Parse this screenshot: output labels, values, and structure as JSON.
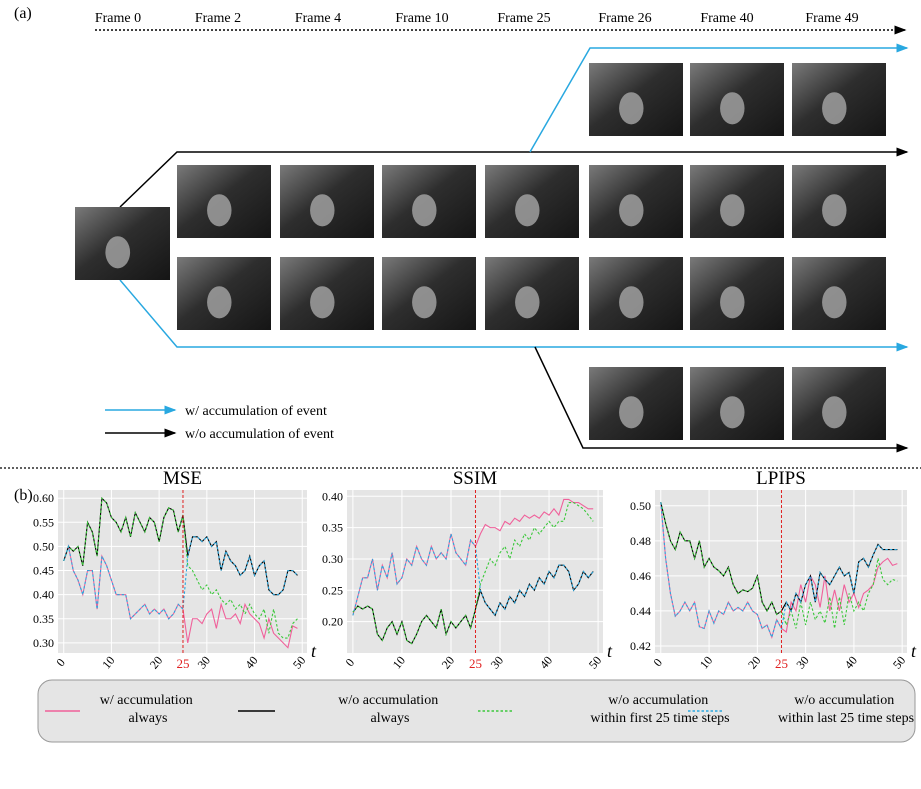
{
  "panel_a": {
    "label": "(a)",
    "frames": [
      "Frame 0",
      "Frame 2",
      "Frame 4",
      "Frame 10",
      "Frame 25",
      "Frame 26",
      "Frame 40",
      "Frame 49"
    ],
    "legend": [
      "w/ accumulation of event",
      "w/o accumulation of event"
    ]
  },
  "panel_b_label": "(b)",
  "chart_data": [
    {
      "type": "line",
      "title": "MSE",
      "x_label": "t",
      "vline": 25,
      "vline_color": "#e02020",
      "grid": true,
      "xlim": [
        -1.2,
        51
      ],
      "xticks": [
        0,
        10,
        20,
        30,
        40,
        50
      ],
      "ylim": [
        0.279,
        0.617
      ],
      "yticks": [
        {
          "value": 0.3,
          "label": "0.30"
        },
        0.35,
        {
          "value": 0.4,
          "label": "0.40"
        },
        0.45,
        {
          "value": 0.5,
          "label": "0.50"
        },
        0.55,
        {
          "value": 0.6,
          "label": "0.60"
        }
      ],
      "x": [
        0,
        1,
        2,
        3,
        4,
        5,
        6,
        7,
        8,
        9,
        10,
        11,
        12,
        13,
        14,
        15,
        16,
        17,
        18,
        19,
        20,
        21,
        22,
        23,
        24,
        25,
        26,
        27,
        28,
        29,
        30,
        31,
        32,
        33,
        34,
        35,
        36,
        37,
        38,
        39,
        40,
        41,
        42,
        43,
        44,
        45,
        46,
        47,
        48,
        49
      ],
      "series": [
        {
          "name": "w/ accumulation always",
          "color": "#f0609a",
          "style": "solid",
          "values": [
            0.47,
            0.5,
            0.45,
            0.43,
            0.4,
            0.45,
            0.45,
            0.37,
            0.48,
            0.46,
            0.43,
            0.4,
            0.4,
            0.4,
            0.35,
            0.36,
            0.37,
            0.38,
            0.36,
            0.37,
            0.36,
            0.37,
            0.35,
            0.36,
            0.38,
            0.37,
            0.3,
            0.35,
            0.35,
            0.34,
            0.36,
            0.37,
            0.33,
            0.38,
            0.35,
            0.35,
            0.36,
            0.34,
            0.38,
            0.36,
            0.35,
            0.34,
            0.31,
            0.35,
            0.32,
            0.31,
            0.3,
            0.29,
            0.335,
            0.33
          ]
        },
        {
          "name": "w/o accumulation always",
          "color": "#000000",
          "style": "solid",
          "values": [
            0.47,
            0.5,
            0.49,
            0.5,
            0.46,
            0.55,
            0.53,
            0.48,
            0.6,
            0.59,
            0.56,
            0.55,
            0.53,
            0.56,
            0.52,
            0.57,
            0.55,
            0.53,
            0.56,
            0.55,
            0.51,
            0.56,
            0.58,
            0.575,
            0.53,
            0.565,
            0.48,
            0.52,
            0.52,
            0.51,
            0.52,
            0.5,
            0.51,
            0.45,
            0.49,
            0.47,
            0.46,
            0.44,
            0.45,
            0.48,
            0.44,
            0.46,
            0.47,
            0.41,
            0.4,
            0.4,
            0.41,
            0.45,
            0.45,
            0.44
          ]
        },
        {
          "name": "w/o accumulation within first 25 time steps",
          "color": "#3cc83c",
          "style": "dotted",
          "values": [
            0.47,
            0.5,
            0.49,
            0.5,
            0.46,
            0.55,
            0.53,
            0.48,
            0.6,
            0.59,
            0.56,
            0.55,
            0.53,
            0.56,
            0.52,
            0.57,
            0.55,
            0.53,
            0.56,
            0.55,
            0.51,
            0.56,
            0.58,
            0.575,
            0.53,
            0.565,
            0.46,
            0.45,
            0.43,
            0.41,
            0.42,
            0.4,
            0.41,
            0.39,
            0.38,
            0.39,
            0.37,
            0.38,
            0.36,
            0.38,
            0.36,
            0.35,
            0.37,
            0.32,
            0.37,
            0.32,
            0.31,
            0.31,
            0.34,
            0.35
          ]
        },
        {
          "name": "w/o accumulation within last 25 time steps",
          "color": "#29a8e0",
          "style": "dotted",
          "values": [
            0.47,
            0.5,
            0.45,
            0.43,
            0.4,
            0.45,
            0.45,
            0.37,
            0.48,
            0.46,
            0.43,
            0.4,
            0.4,
            0.4,
            0.35,
            0.36,
            0.37,
            0.38,
            0.36,
            0.37,
            0.36,
            0.37,
            0.35,
            0.36,
            0.38,
            0.37,
            0.48,
            0.52,
            0.52,
            0.51,
            0.52,
            0.5,
            0.51,
            0.45,
            0.49,
            0.47,
            0.46,
            0.44,
            0.45,
            0.48,
            0.44,
            0.46,
            0.47,
            0.41,
            0.4,
            0.4,
            0.41,
            0.45,
            0.45,
            0.44
          ]
        }
      ]
    },
    {
      "type": "line",
      "title": "SSIM",
      "x_label": "t",
      "vline": 25,
      "vline_color": "#e02020",
      "grid": true,
      "xlim": [
        -1.2,
        51
      ],
      "xticks": [
        0,
        10,
        20,
        30,
        40,
        50
      ],
      "ylim": [
        0.15,
        0.41
      ],
      "yticks": [
        {
          "value": 0.2,
          "label": "0.20"
        },
        0.25,
        {
          "value": 0.3,
          "label": "0.30"
        },
        0.35,
        {
          "value": 0.4,
          "label": "0.40"
        }
      ],
      "x": [
        0,
        1,
        2,
        3,
        4,
        5,
        6,
        7,
        8,
        9,
        10,
        11,
        12,
        13,
        14,
        15,
        16,
        17,
        18,
        19,
        20,
        21,
        22,
        23,
        24,
        25,
        26,
        27,
        28,
        29,
        30,
        31,
        32,
        33,
        34,
        35,
        36,
        37,
        38,
        39,
        40,
        41,
        42,
        43,
        44,
        45,
        46,
        47,
        48,
        49
      ],
      "series": [
        {
          "color": "#f0609a",
          "style": "solid",
          "values": [
            0.21,
            0.24,
            0.27,
            0.27,
            0.3,
            0.25,
            0.29,
            0.27,
            0.31,
            0.26,
            0.27,
            0.3,
            0.29,
            0.32,
            0.3,
            0.29,
            0.32,
            0.3,
            0.31,
            0.3,
            0.34,
            0.31,
            0.3,
            0.29,
            0.33,
            0.32,
            0.34,
            0.355,
            0.35,
            0.35,
            0.345,
            0.36,
            0.355,
            0.365,
            0.36,
            0.37,
            0.365,
            0.37,
            0.365,
            0.375,
            0.37,
            0.38,
            0.37,
            0.395,
            0.395,
            0.39,
            0.39,
            0.385,
            0.38,
            0.38
          ]
        },
        {
          "color": "#000000",
          "style": "solid",
          "values": [
            0.215,
            0.225,
            0.22,
            0.225,
            0.22,
            0.18,
            0.17,
            0.19,
            0.2,
            0.18,
            0.2,
            0.17,
            0.165,
            0.18,
            0.2,
            0.21,
            0.2,
            0.19,
            0.22,
            0.18,
            0.2,
            0.19,
            0.2,
            0.21,
            0.19,
            0.22,
            0.25,
            0.23,
            0.22,
            0.21,
            0.23,
            0.22,
            0.24,
            0.23,
            0.25,
            0.24,
            0.26,
            0.25,
            0.27,
            0.26,
            0.28,
            0.27,
            0.29,
            0.29,
            0.28,
            0.25,
            0.26,
            0.28,
            0.27,
            0.28
          ]
        },
        {
          "color": "#3cc83c",
          "style": "dotted",
          "values": [
            0.215,
            0.225,
            0.22,
            0.225,
            0.22,
            0.18,
            0.17,
            0.19,
            0.2,
            0.18,
            0.2,
            0.17,
            0.165,
            0.18,
            0.2,
            0.21,
            0.2,
            0.19,
            0.22,
            0.18,
            0.2,
            0.19,
            0.2,
            0.21,
            0.19,
            0.22,
            0.26,
            0.28,
            0.3,
            0.29,
            0.31,
            0.32,
            0.3,
            0.33,
            0.32,
            0.34,
            0.33,
            0.35,
            0.34,
            0.35,
            0.36,
            0.35,
            0.36,
            0.36,
            0.39,
            0.39,
            0.385,
            0.38,
            0.37,
            0.36
          ]
        },
        {
          "color": "#29a8e0",
          "style": "dotted",
          "values": [
            0.21,
            0.24,
            0.27,
            0.27,
            0.3,
            0.25,
            0.29,
            0.27,
            0.31,
            0.26,
            0.27,
            0.3,
            0.29,
            0.32,
            0.3,
            0.29,
            0.32,
            0.3,
            0.31,
            0.3,
            0.34,
            0.31,
            0.3,
            0.29,
            0.33,
            0.32,
            0.25,
            0.23,
            0.22,
            0.21,
            0.23,
            0.22,
            0.24,
            0.23,
            0.25,
            0.24,
            0.26,
            0.25,
            0.27,
            0.26,
            0.28,
            0.27,
            0.29,
            0.29,
            0.28,
            0.25,
            0.26,
            0.28,
            0.27,
            0.28
          ]
        }
      ]
    },
    {
      "type": "line",
      "title": "LPIPS",
      "x_label": "t",
      "vline": 25,
      "vline_color": "#e02020",
      "grid": true,
      "xlim": [
        -1.2,
        51
      ],
      "xticks": [
        0,
        10,
        20,
        30,
        40,
        50
      ],
      "ylim": [
        0.416,
        0.509
      ],
      "yticks": [
        0.42,
        0.44,
        0.46,
        0.48,
        {
          "value": 0.5,
          "label": "0.50"
        }
      ],
      "x": [
        0,
        1,
        2,
        3,
        4,
        5,
        6,
        7,
        8,
        9,
        10,
        11,
        12,
        13,
        14,
        15,
        16,
        17,
        18,
        19,
        20,
        21,
        22,
        23,
        24,
        25,
        26,
        27,
        28,
        29,
        30,
        31,
        32,
        33,
        34,
        35,
        36,
        37,
        38,
        39,
        40,
        41,
        42,
        43,
        44,
        45,
        46,
        47,
        48,
        49
      ],
      "series": [
        {
          "color": "#f0609a",
          "style": "solid",
          "values": [
            0.502,
            0.47,
            0.45,
            0.437,
            0.44,
            0.445,
            0.44,
            0.445,
            0.431,
            0.43,
            0.44,
            0.433,
            0.44,
            0.438,
            0.445,
            0.44,
            0.442,
            0.44,
            0.445,
            0.44,
            0.438,
            0.43,
            0.432,
            0.425,
            0.435,
            0.43,
            0.428,
            0.445,
            0.44,
            0.455,
            0.445,
            0.46,
            0.455,
            0.442,
            0.46,
            0.44,
            0.452,
            0.44,
            0.455,
            0.445,
            0.45,
            0.442,
            0.45,
            0.452,
            0.455,
            0.465,
            0.468,
            0.47,
            0.466,
            0.467
          ]
        },
        {
          "color": "#000000",
          "style": "solid",
          "values": [
            0.502,
            0.49,
            0.48,
            0.475,
            0.485,
            0.48,
            0.48,
            0.47,
            0.48,
            0.465,
            0.47,
            0.465,
            0.463,
            0.46,
            0.465,
            0.455,
            0.45,
            0.452,
            0.451,
            0.453,
            0.46,
            0.445,
            0.44,
            0.445,
            0.438,
            0.44,
            0.445,
            0.44,
            0.45,
            0.445,
            0.455,
            0.46,
            0.445,
            0.462,
            0.458,
            0.455,
            0.46,
            0.465,
            0.46,
            0.462,
            0.45,
            0.468,
            0.47,
            0.465,
            0.472,
            0.478,
            0.475,
            0.475,
            0.475,
            0.475
          ]
        },
        {
          "color": "#3cc83c",
          "style": "dotted",
          "values": [
            0.502,
            0.49,
            0.48,
            0.475,
            0.485,
            0.48,
            0.48,
            0.47,
            0.48,
            0.465,
            0.47,
            0.465,
            0.463,
            0.46,
            0.465,
            0.455,
            0.45,
            0.452,
            0.451,
            0.453,
            0.46,
            0.445,
            0.44,
            0.445,
            0.438,
            0.44,
            0.432,
            0.44,
            0.43,
            0.445,
            0.432,
            0.445,
            0.435,
            0.44,
            0.433,
            0.448,
            0.43,
            0.448,
            0.432,
            0.45,
            0.44,
            0.445,
            0.44,
            0.45,
            0.455,
            0.47,
            0.458,
            0.455,
            0.458,
            0.457
          ]
        },
        {
          "color": "#29a8e0",
          "style": "dotted",
          "values": [
            0.502,
            0.47,
            0.45,
            0.437,
            0.44,
            0.445,
            0.44,
            0.445,
            0.431,
            0.43,
            0.44,
            0.433,
            0.44,
            0.438,
            0.445,
            0.44,
            0.442,
            0.44,
            0.445,
            0.44,
            0.438,
            0.43,
            0.432,
            0.425,
            0.435,
            0.43,
            0.445,
            0.44,
            0.45,
            0.445,
            0.455,
            0.46,
            0.445,
            0.462,
            0.458,
            0.455,
            0.46,
            0.465,
            0.46,
            0.462,
            0.45,
            0.468,
            0.47,
            0.465,
            0.472,
            0.478,
            0.475,
            0.475,
            0.475,
            0.475
          ]
        }
      ]
    }
  ]
}
